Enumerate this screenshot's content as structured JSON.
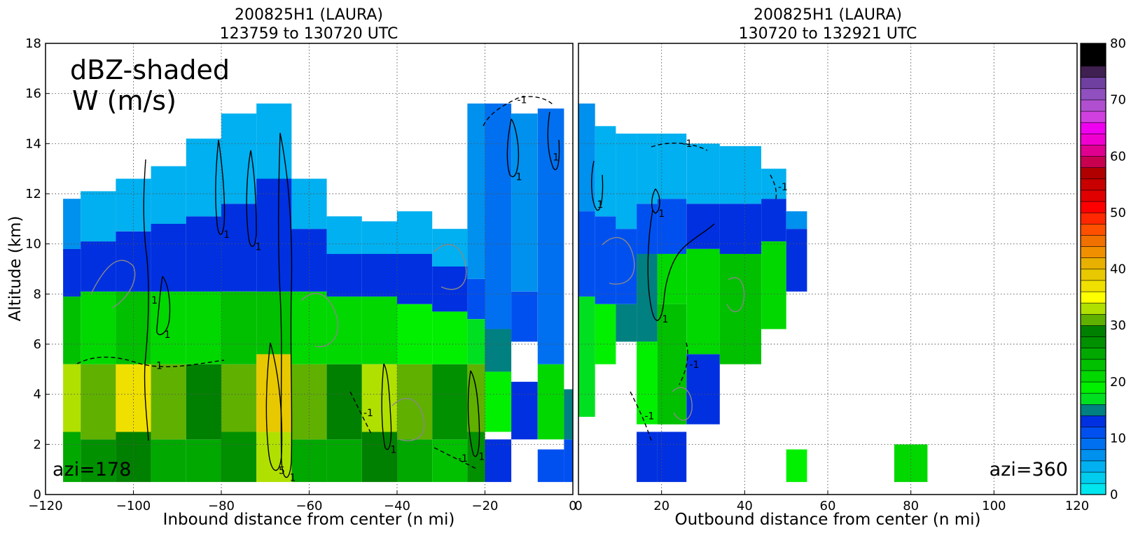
{
  "chart_data": [
    {
      "type": "heatmap",
      "title": "200825H1 (LAURA)",
      "subtitle": "123759 to 130720 UTC",
      "xlabel": "Inbound distance from center (n mi)",
      "ylabel": "Altitude (km)",
      "xlim": [
        -120,
        0
      ],
      "ylim": [
        0,
        18
      ],
      "xticks": [
        "−120",
        "−100",
        "−80",
        "−60",
        "−40",
        "−20",
        "0"
      ],
      "yticks": [
        "0",
        "2",
        "4",
        "6",
        "8",
        "10",
        "12",
        "14",
        "16",
        "18"
      ],
      "grid": true,
      "annotations": {
        "shading_label": "dBZ-shaded",
        "contour_label": "W (m/s)",
        "azimuth_label": "azi=178",
        "contour_levels": [
          "-1",
          "1",
          "5"
        ]
      },
      "columns": [
        {
          "x": [
            -116,
            -112
          ],
          "bands": [
            [
              0.5,
              2.5,
              24
            ],
            [
              2.5,
              5.2,
              33
            ],
            [
              5.2,
              7.9,
              22
            ],
            [
              7.9,
              9.8,
              12
            ],
            [
              9.8,
              11.8,
              6
            ]
          ]
        },
        {
          "x": [
            -112,
            -104
          ],
          "bands": [
            [
              0.5,
              2.2,
              26
            ],
            [
              2.2,
              5.2,
              31
            ],
            [
              5.2,
              8.1,
              21
            ],
            [
              8.1,
              10.1,
              12
            ],
            [
              10.1,
              12.1,
              5
            ]
          ]
        },
        {
          "x": [
            -104,
            -96
          ],
          "bands": [
            [
              0.5,
              2.5,
              28
            ],
            [
              2.5,
              5.2,
              36
            ],
            [
              5.2,
              8.1,
              22
            ],
            [
              8.1,
              10.5,
              12
            ],
            [
              10.5,
              12.6,
              5
            ]
          ]
        },
        {
          "x": [
            -96,
            -88
          ],
          "bands": [
            [
              0.5,
              2.2,
              25
            ],
            [
              2.2,
              5.2,
              30
            ],
            [
              5.2,
              8.1,
              21
            ],
            [
              8.1,
              10.8,
              13
            ],
            [
              10.8,
              13.1,
              5
            ]
          ]
        },
        {
          "x": [
            -88,
            -80
          ],
          "bands": [
            [
              0.5,
              2.2,
              25
            ],
            [
              2.2,
              5.2,
              28
            ],
            [
              5.2,
              8.1,
              21
            ],
            [
              8.1,
              11.1,
              13
            ],
            [
              11.1,
              14.2,
              5
            ]
          ]
        },
        {
          "x": [
            -80,
            -72
          ],
          "bands": [
            [
              0.5,
              2.5,
              26
            ],
            [
              2.5,
              5.2,
              31
            ],
            [
              5.2,
              8.1,
              22
            ],
            [
              8.1,
              11.6,
              13
            ],
            [
              11.6,
              15.2,
              5
            ]
          ]
        },
        {
          "x": [
            -72,
            -64
          ],
          "bands": [
            [
              0.5,
              2.5,
              33
            ],
            [
              2.5,
              5.6,
              38
            ],
            [
              5.6,
              8.1,
              23
            ],
            [
              8.1,
              12.6,
              13
            ],
            [
              12.6,
              15.6,
              5
            ]
          ]
        },
        {
          "x": [
            -64,
            -56
          ],
          "bands": [
            [
              0.5,
              2.2,
              25
            ],
            [
              2.2,
              5.2,
              30
            ],
            [
              5.2,
              8.1,
              21
            ],
            [
              8.1,
              10.6,
              13
            ],
            [
              10.6,
              12.6,
              5
            ]
          ]
        },
        {
          "x": [
            -56,
            -48
          ],
          "bands": [
            [
              0.5,
              2.2,
              24
            ],
            [
              2.2,
              5.2,
              28
            ],
            [
              5.2,
              7.9,
              20
            ],
            [
              7.9,
              9.6,
              12
            ],
            [
              9.6,
              11.1,
              5
            ]
          ]
        },
        {
          "x": [
            -48,
            -40
          ],
          "bands": [
            [
              0.5,
              2.5,
              28
            ],
            [
              2.5,
              5.2,
              33
            ],
            [
              5.2,
              7.9,
              20
            ],
            [
              7.9,
              9.6,
              12
            ],
            [
              9.6,
              10.9,
              5
            ]
          ]
        },
        {
          "x": [
            -40,
            -32
          ],
          "bands": [
            [
              0.5,
              2.2,
              24
            ],
            [
              2.2,
              5.2,
              30
            ],
            [
              5.2,
              7.6,
              19
            ],
            [
              7.6,
              9.6,
              12
            ],
            [
              9.6,
              11.3,
              5
            ]
          ]
        },
        {
          "x": [
            -32,
            -24
          ],
          "bands": [
            [
              0.5,
              2.2,
              23
            ],
            [
              2.2,
              5.2,
              27
            ],
            [
              5.2,
              7.3,
              18
            ],
            [
              7.3,
              9.1,
              12
            ],
            [
              9.1,
              10.6,
              5
            ]
          ]
        },
        {
          "x": [
            -24,
            -20
          ],
          "bands": [
            [
              0.5,
              2.5,
              26
            ],
            [
              2.5,
              5.2,
              31
            ],
            [
              5.2,
              7.0,
              17
            ],
            [
              7.0,
              8.6,
              11
            ],
            [
              8.6,
              15.6,
              6
            ]
          ]
        },
        {
          "x": [
            -20,
            -14
          ],
          "bands": [
            [
              0.5,
              2.2,
              12
            ],
            [
              2.5,
              4.9,
              18
            ],
            [
              4.9,
              6.6,
              14
            ],
            [
              6.6,
              15.6,
              9
            ]
          ]
        },
        {
          "x": [
            -14,
            -8
          ],
          "bands": [
            [
              2.2,
              4.5,
              12
            ],
            [
              6.1,
              8.1,
              10
            ],
            [
              8.1,
              15.2,
              7
            ]
          ]
        },
        {
          "x": [
            -8,
            -2
          ],
          "bands": [
            [
              0.5,
              1.8,
              10
            ],
            [
              2.2,
              5.2,
              21
            ],
            [
              5.2,
              15.4,
              8
            ]
          ]
        },
        {
          "x": [
            -2,
            0
          ],
          "bands": [
            [
              0.5,
              2.2,
              11
            ],
            [
              2.2,
              4.2,
              14
            ]
          ]
        }
      ]
    },
    {
      "type": "heatmap",
      "title": "200825H1 (LAURA)",
      "subtitle": "130720 to 132921 UTC",
      "xlabel": "Outbound distance from center (n mi)",
      "ylabel": "",
      "xlim": [
        0,
        120
      ],
      "ylim": [
        0,
        18
      ],
      "xticks": [
        "0",
        "20",
        "40",
        "60",
        "80",
        "100",
        "120"
      ],
      "yticks": [],
      "grid": true,
      "annotations": {
        "azimuth_label": "azi=360",
        "contour_levels": [
          "-1",
          "1"
        ]
      },
      "columns": [
        {
          "x": [
            0,
            4
          ],
          "bands": [
            [
              3.1,
              7.9,
              16
            ],
            [
              7.9,
              11.3,
              11
            ],
            [
              11.3,
              15.6,
              6
            ]
          ]
        },
        {
          "x": [
            4,
            9
          ],
          "bands": [
            [
              5.2,
              7.6,
              18
            ],
            [
              7.6,
              11.1,
              11
            ],
            [
              11.1,
              14.7,
              5
            ]
          ]
        },
        {
          "x": [
            9,
            14
          ],
          "bands": [
            [
              6.1,
              7.6,
              14
            ],
            [
              7.6,
              10.6,
              10
            ],
            [
              10.6,
              14.4,
              5
            ]
          ]
        },
        {
          "x": [
            14,
            19
          ],
          "bands": [
            [
              0.5,
              2.5,
              12
            ],
            [
              2.8,
              6.1,
              18
            ],
            [
              6.1,
              9.6,
              14
            ],
            [
              9.6,
              11.6,
              10
            ],
            [
              11.6,
              14.4,
              5
            ]
          ]
        },
        {
          "x": [
            19,
            26
          ],
          "bands": [
            [
              0.5,
              2.5,
              12
            ],
            [
              2.8,
              7.6,
              23
            ],
            [
              7.6,
              9.6,
              20
            ],
            [
              9.6,
              11.8,
              11
            ],
            [
              11.8,
              14.4,
              5
            ]
          ]
        },
        {
          "x": [
            26,
            34
          ],
          "bands": [
            [
              2.8,
              5.6,
              13
            ],
            [
              5.6,
              9.8,
              21
            ],
            [
              9.8,
              11.6,
              12
            ],
            [
              11.6,
              14.0,
              5
            ]
          ]
        },
        {
          "x": [
            34,
            44
          ],
          "bands": [
            [
              5.2,
              9.6,
              22
            ],
            [
              9.6,
              11.6,
              12
            ],
            [
              11.6,
              13.9,
              5
            ]
          ]
        },
        {
          "x": [
            44,
            50
          ],
          "bands": [
            [
              6.6,
              10.1,
              20
            ],
            [
              10.1,
              11.8,
              12
            ],
            [
              11.8,
              13.0,
              5
            ]
          ]
        },
        {
          "x": [
            50,
            55
          ],
          "bands": [
            [
              8.1,
              10.6,
              12
            ],
            [
              10.6,
              11.3,
              7
            ],
            [
              0.5,
              1.8,
              18
            ]
          ]
        },
        {
          "x": [
            76,
            84
          ],
          "bands": [
            [
              0.5,
              2.0,
              20
            ]
          ]
        }
      ]
    }
  ],
  "colorbar": {
    "ticks": [
      "0",
      "10",
      "20",
      "30",
      "40",
      "50",
      "60",
      "70",
      "80"
    ],
    "range": [
      0,
      80
    ],
    "levels": [
      0,
      2,
      4,
      6,
      8,
      10,
      12,
      14,
      16,
      18,
      20,
      22,
      24,
      26,
      28,
      30,
      32,
      34,
      36,
      38,
      40,
      42,
      44,
      46,
      48,
      50,
      52,
      54,
      56,
      58,
      60,
      62,
      64,
      66,
      68,
      70,
      72,
      74,
      76,
      78,
      80
    ],
    "colors": [
      "#00e5ee",
      "#00ccee",
      "#00b0f0",
      "#0090ee",
      "#0070f0",
      "#0050f0",
      "#0030e0",
      "#008080",
      "#00e020",
      "#00f000",
      "#00d800",
      "#00c000",
      "#00a800",
      "#009000",
      "#008000",
      "#60b000",
      "#b0e000",
      "#ffff00",
      "#f0e000",
      "#e8c800",
      "#e8b000",
      "#f09000",
      "#f07000",
      "#ff5000",
      "#ff2800",
      "#ff0000",
      "#e00000",
      "#c80000",
      "#b00000",
      "#c80050",
      "#e00090",
      "#f000d0",
      "#f000f0",
      "#d040e0",
      "#b050d0",
      "#9050c0",
      "#7040a0",
      "#402050",
      "#000000",
      "#000000"
    ]
  }
}
